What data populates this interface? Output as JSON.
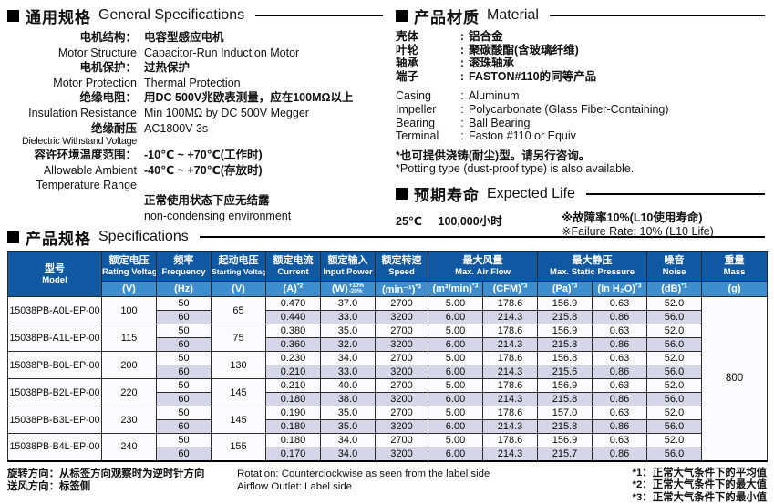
{
  "general": {
    "title_zh": "通用规格",
    "title_en": "General Specifications",
    "lines": [
      {
        "label": "电机结构：",
        "llang": "zh",
        "value": "电容型感应电机",
        "vlang": "zh"
      },
      {
        "label": "Motor Structure",
        "llang": "en",
        "value": "Capacitor-Run Induction Motor",
        "vlang": "en"
      },
      {
        "label": "电机保护：",
        "llang": "zh",
        "value": "过热保护",
        "vlang": "zh"
      },
      {
        "label": "Motor Protection",
        "llang": "en",
        "value": "Thermal Protection",
        "vlang": "en"
      },
      {
        "label": "绝缘电阻：",
        "llang": "zh",
        "value": "用DC 500V兆欧表测量，应在100MΩ以上",
        "vlang": "zh"
      },
      {
        "label": "Insulation Resistance",
        "llang": "en",
        "value": "Min 100MΩ by DC 500V Megger",
        "vlang": "en"
      },
      {
        "label": "绝缘耐压",
        "llang": "zh",
        "value": "AC1800V 3s",
        "vlang": "en"
      },
      {
        "label": "Dielectric Withstand Voltage",
        "llang": "en sm",
        "value": "",
        "vlang": "en"
      },
      {
        "label": "容许环境温度范围：",
        "llang": "zh",
        "value": "-10℃ ~ +70℃(工作时)",
        "vlang": "zh"
      },
      {
        "label": "Allowable Ambient",
        "llang": "en",
        "value": "-40℃ ~ +70℃(存放时)",
        "vlang": "zh"
      },
      {
        "label": "Temperature Range",
        "llang": "en",
        "value": "",
        "vlang": "zh"
      },
      {
        "label": "",
        "llang": "en",
        "value": "正常使用状态下应无结露",
        "vlang": "zh"
      },
      {
        "label": "",
        "llang": "en",
        "value": "non-condensing environment",
        "vlang": "en"
      }
    ]
  },
  "material": {
    "title_zh": "产品材质",
    "title_en": "Material",
    "lines": [
      {
        "label": "壳体",
        "value": "铝合金",
        "lang": "zh",
        "gap": false
      },
      {
        "label": "叶轮",
        "value": "聚碳酸酯(含玻璃纤维)",
        "lang": "zh",
        "gap": false
      },
      {
        "label": "轴承",
        "value": "滚珠轴承",
        "lang": "zh",
        "gap": false
      },
      {
        "label": "端子",
        "value": "FASTON#110的同等产品",
        "lang": "zh",
        "gap": false
      },
      {
        "label": "Casing",
        "value": "Aluminum",
        "lang": "en",
        "gap": true
      },
      {
        "label": "Impeller",
        "value": "Polycarbonate (Glass Fiber-Containing)",
        "lang": "en",
        "gap": false
      },
      {
        "label": "Bearing",
        "value": "Ball Bearing",
        "lang": "en",
        "gap": false
      },
      {
        "label": "Terminal",
        "value": "Faston #110 or Equiv",
        "lang": "en",
        "gap": false
      }
    ],
    "note_zh": "*也可提供浇铸(耐尘)型。请另行咨询。",
    "note_en": "*Potting type (dust-proof type) is also available."
  },
  "life": {
    "title_zh": "预期寿命",
    "title_en": "Expected Life",
    "condition": "25℃",
    "value": "100,000小时",
    "note_zh": "※故障率10%(L10使用寿命)",
    "note_en": "※Failure Rate: 10% (L10 Life)"
  },
  "table": {
    "title_zh": "产品规格",
    "title_en": "Specifications",
    "col_headers": {
      "model_zh": "型号",
      "model_en": "Model",
      "voltage_zh": "额定电压",
      "voltage_en": "Rating Voltage",
      "voltage_unit": "(V)",
      "freq_zh": "频率",
      "freq_en": "Frequency",
      "freq_unit": "(Hz)",
      "startv_zh": "起动电压",
      "startv_en": "Starting Voltage",
      "startv_unit": "(V)",
      "current_zh": "额定电流",
      "current_en": "Current",
      "current_unit": "(A)",
      "current_sup": "*2",
      "power_zh": "额定输入",
      "power_en": "Input Power",
      "power_unit": "(W)",
      "power_sup": "+10%",
      "power_sub": "-20%",
      "speed_zh": "额定转速",
      "speed_en": "Speed",
      "speed_unit": "(min⁻¹)",
      "speed_sup": "*3",
      "airflow_zh": "最大风量",
      "airflow_en": "Max. Air Flow",
      "airflow_unit1": "(m³/min)",
      "airflow_unit1_sup": "*3",
      "airflow_unit2": "(CFM)",
      "airflow_unit2_sup": "*3",
      "pressure_zh": "最大静压",
      "pressure_en": "Max. Static Pressure",
      "pressure_unit1": "(Pa)",
      "pressure_unit1_sup": "*3",
      "pressure_unit2": "(In H₂O)",
      "pressure_unit2_sup": "*3",
      "noise_zh": "噪音",
      "noise_en": "Noise",
      "noise_unit": "(dB)",
      "noise_sup": "*1",
      "mass_zh": "重量",
      "mass_en": "Mass",
      "mass_unit": "(g)"
    },
    "mass_value": "800",
    "models": [
      {
        "model": "15038PB-A0L-EP-00",
        "voltage": "100",
        "starting_voltage": "65",
        "rows": [
          {
            "freq": "50",
            "current": "0.470",
            "power": "37.0",
            "speed": "2700",
            "airflow_m3": "5.00",
            "airflow_cfm": "178.6",
            "pressure_pa": "156.9",
            "pressure_inh2o": "0.63",
            "noise": "52.0"
          },
          {
            "freq": "60",
            "current": "0.440",
            "power": "33.0",
            "speed": "3200",
            "airflow_m3": "6.00",
            "airflow_cfm": "214.3",
            "pressure_pa": "215.8",
            "pressure_inh2o": "0.86",
            "noise": "56.0"
          }
        ]
      },
      {
        "model": "15038PB-A1L-EP-00",
        "voltage": "115",
        "starting_voltage": "75",
        "rows": [
          {
            "freq": "50",
            "current": "0.380",
            "power": "35.0",
            "speed": "2700",
            "airflow_m3": "5.00",
            "airflow_cfm": "178.6",
            "pressure_pa": "156.9",
            "pressure_inh2o": "0.63",
            "noise": "52.0"
          },
          {
            "freq": "60",
            "current": "0.360",
            "power": "32.0",
            "speed": "3200",
            "airflow_m3": "6.00",
            "airflow_cfm": "214.3",
            "pressure_pa": "215.8",
            "pressure_inh2o": "0.86",
            "noise": "56.0"
          }
        ]
      },
      {
        "model": "15038PB-B0L-EP-00",
        "voltage": "200",
        "starting_voltage": "130",
        "rows": [
          {
            "freq": "50",
            "current": "0.230",
            "power": "34.0",
            "speed": "2700",
            "airflow_m3": "5.00",
            "airflow_cfm": "178.6",
            "pressure_pa": "156.8",
            "pressure_inh2o": "0.63",
            "noise": "52.0"
          },
          {
            "freq": "60",
            "current": "0.210",
            "power": "33.0",
            "speed": "3200",
            "airflow_m3": "6.00",
            "airflow_cfm": "214.3",
            "pressure_pa": "215.6",
            "pressure_inh2o": "0.86",
            "noise": "56.0"
          }
        ]
      },
      {
        "model": "15038PB-B2L-EP-00",
        "voltage": "220",
        "starting_voltage": "145",
        "rows": [
          {
            "freq": "50",
            "current": "0.210",
            "power": "40.0",
            "speed": "2700",
            "airflow_m3": "5.00",
            "airflow_cfm": "178.6",
            "pressure_pa": "156.9",
            "pressure_inh2o": "0.63",
            "noise": "52.0"
          },
          {
            "freq": "60",
            "current": "0.180",
            "power": "38.0",
            "speed": "3200",
            "airflow_m3": "6.00",
            "airflow_cfm": "214.3",
            "pressure_pa": "215.8",
            "pressure_inh2o": "0.86",
            "noise": "56.0"
          }
        ]
      },
      {
        "model": "15038PB-B3L-EP-00",
        "voltage": "230",
        "starting_voltage": "145",
        "rows": [
          {
            "freq": "50",
            "current": "0.190",
            "power": "35.0",
            "speed": "2700",
            "airflow_m3": "5.00",
            "airflow_cfm": "178.6",
            "pressure_pa": "157.0",
            "pressure_inh2o": "0.63",
            "noise": "52.0"
          },
          {
            "freq": "60",
            "current": "0.180",
            "power": "35.0",
            "speed": "3200",
            "airflow_m3": "6.00",
            "airflow_cfm": "214.3",
            "pressure_pa": "215.8",
            "pressure_inh2o": "0.86",
            "noise": "56.0"
          }
        ]
      },
      {
        "model": "15038PB-B4L-EP-00",
        "voltage": "240",
        "starting_voltage": "155",
        "rows": [
          {
            "freq": "50",
            "current": "0.180",
            "power": "34.0",
            "speed": "2700",
            "airflow_m3": "5.00",
            "airflow_cfm": "178.6",
            "pressure_pa": "156.9",
            "pressure_inh2o": "0.63",
            "noise": "52.0"
          },
          {
            "freq": "60",
            "current": "0.170",
            "power": "34.0",
            "speed": "3200",
            "airflow_m3": "6.00",
            "airflow_cfm": "214.3",
            "pressure_pa": "215.7",
            "pressure_inh2o": "0.86",
            "noise": "56.0"
          }
        ]
      }
    ]
  },
  "footer": {
    "rotation_zh": "旋转方向：从标签方向观察时为逆时针方向",
    "outlet_zh": "送风方向：标签侧",
    "rotation_en": "Rotation: Counterclockwise as seen from the label side",
    "outlet_en": "Airflow Outlet: Label side",
    "notes": [
      "*1：正常大气条件下的平均值",
      "*2：正常大气条件下的最大值",
      "*3：正常大气条件下的最小值"
    ]
  },
  "colors": {
    "header_dark_blue": "#1158a2",
    "header_light_blue": "#3e8ecf",
    "row_60hz": "#d6d6e8",
    "row_50hz": "#fbfbfd",
    "merged_cell": "#eaeaf2"
  }
}
